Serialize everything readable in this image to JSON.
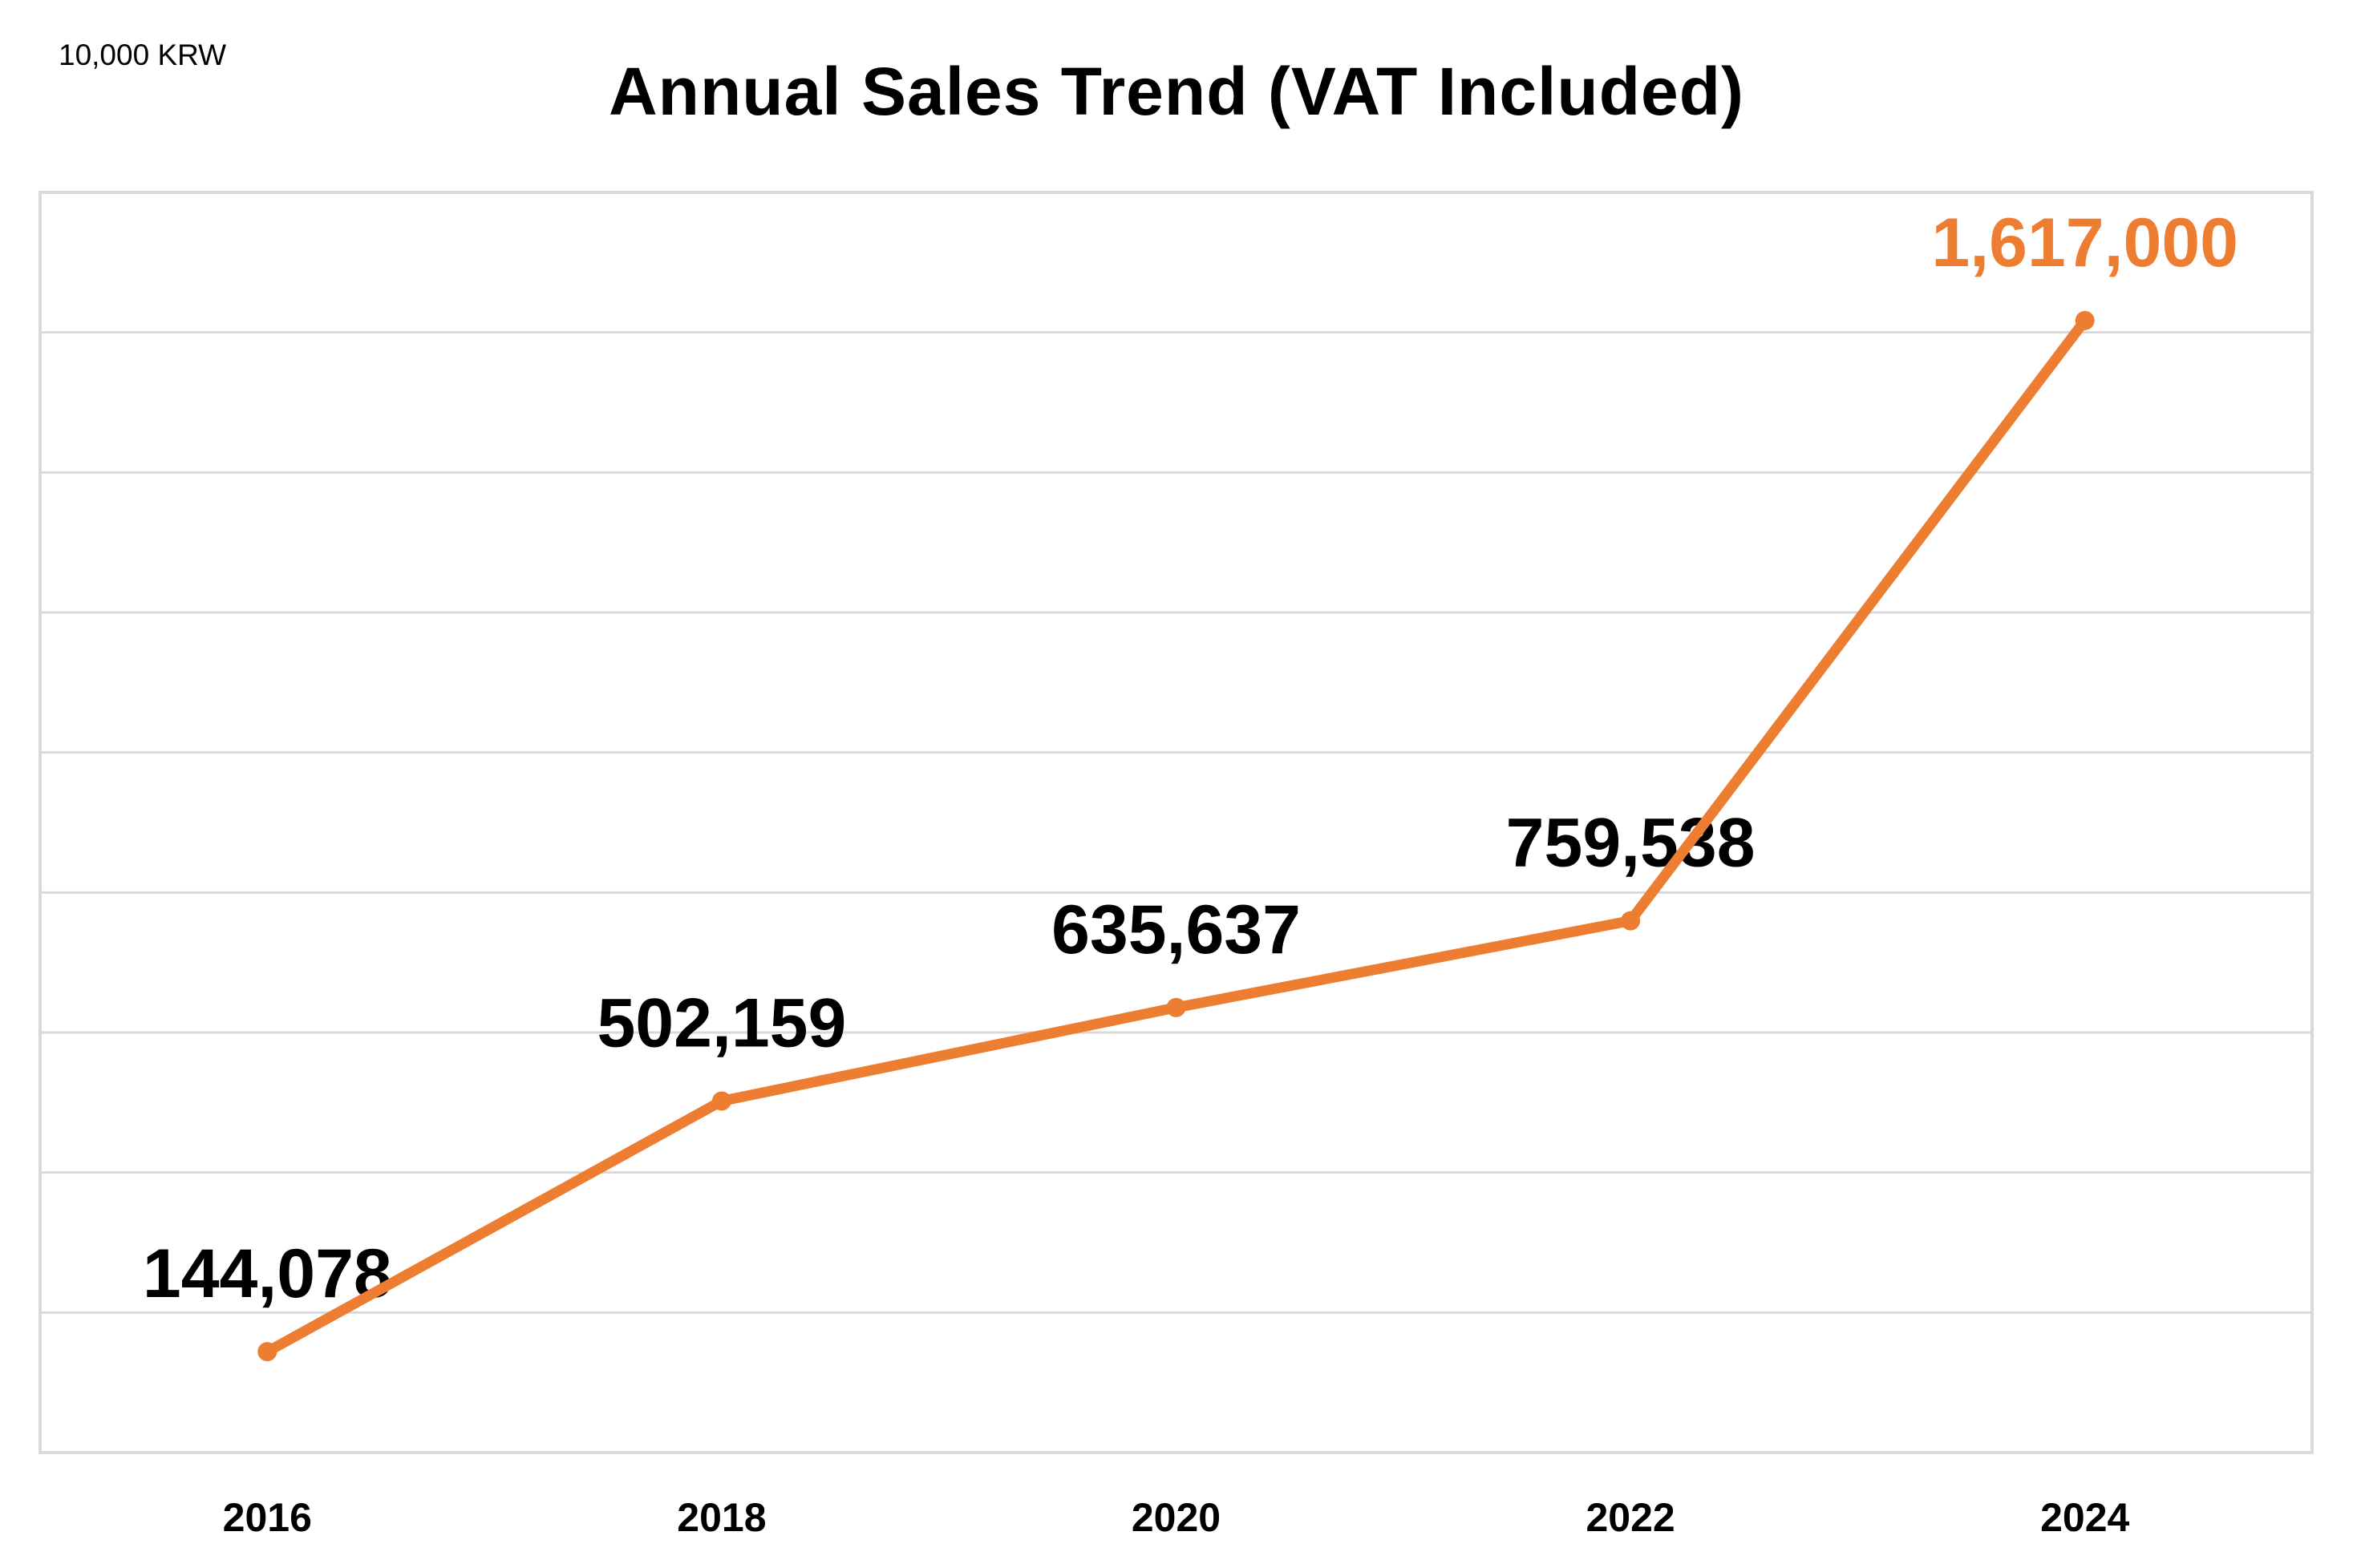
{
  "unit_label": "10,000 KRW",
  "chart_data": {
    "type": "line",
    "title": "Annual Sales Trend (VAT Included)",
    "unit": "10,000 KRW",
    "xlabel": "",
    "ylabel": "",
    "categories": [
      "2016",
      "2018",
      "2020",
      "2022",
      "2024"
    ],
    "series": [
      {
        "name": "Annual Sales",
        "values": [
          144078,
          502159,
          635637,
          759538,
          1617000
        ],
        "labels": [
          "144,078",
          "502,159",
          "635,637",
          "759,538",
          "1,617,000"
        ],
        "color": "#ED7D31"
      }
    ],
    "highlight": {
      "index": 4,
      "label_color": "#ED7D31"
    },
    "default_label_color": "#000000",
    "ylim": [
      0,
      1800000
    ],
    "y_grid_step": 200000,
    "grid": true,
    "y_tick_labels_visible": false,
    "legend": "none"
  }
}
